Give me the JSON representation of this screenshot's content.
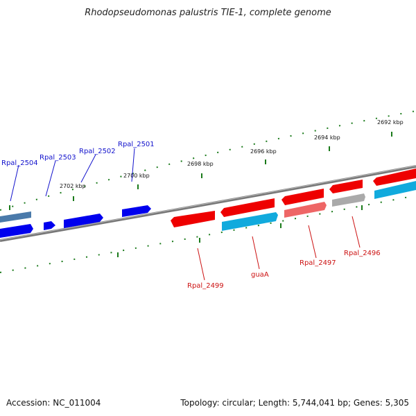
{
  "title": "Rhodopseudomonas palustris TIE-1, complete genome",
  "footer": {
    "accession": "Accession: NC_011004",
    "summary": "Topology: circular; Length: 5,744,041 bp; Genes: 5,305"
  },
  "colors": {
    "backbone": "#7a7a7a",
    "tick": "#1a7a1a",
    "minus_label": "#1111cc",
    "plus_label": "#cc1111"
  },
  "ticks": [
    {
      "label": "2692 kbp"
    },
    {
      "label": "2694 kbp"
    },
    {
      "label": "2696 kbp"
    },
    {
      "label": "2698 kbp"
    },
    {
      "label": "2700 kbp"
    },
    {
      "label": "2702 kbp"
    }
  ],
  "gene_labels": [
    {
      "name": "Rpal_2504",
      "color": "#1111cc"
    },
    {
      "name": "Rpal_2503",
      "color": "#1111cc"
    },
    {
      "name": "Rpal_2502",
      "color": "#1111cc"
    },
    {
      "name": "Rpal_2501",
      "color": "#1111cc"
    },
    {
      "name": "Rpal_2499",
      "color": "#cc1111"
    },
    {
      "name": "guaA",
      "color": "#cc1111"
    },
    {
      "name": "Rpal_2497",
      "color": "#cc1111"
    },
    {
      "name": "Rpal_2496",
      "color": "#cc1111"
    }
  ]
}
